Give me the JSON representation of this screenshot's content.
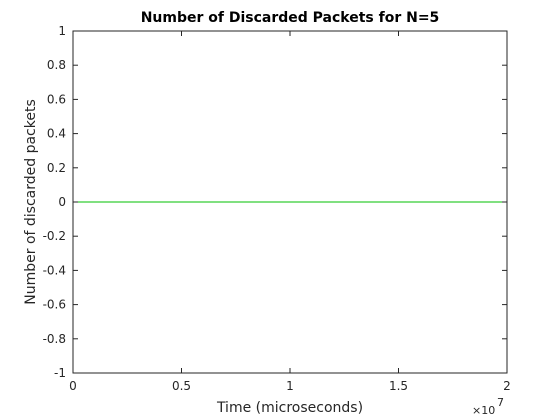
{
  "chart_data": {
    "type": "line",
    "title": "Number of Discarded Packets for N=5",
    "xlabel": "Time (microseconds)",
    "ylabel": "Number of discarded packets",
    "x_exponent_base": "×10",
    "x_exponent_power": "7",
    "xlim": [
      0,
      20000000
    ],
    "ylim": [
      -1,
      1
    ],
    "x_ticks": [
      0,
      5000000,
      10000000,
      15000000,
      20000000
    ],
    "x_tick_labels": [
      "0",
      "0.5",
      "1",
      "1.5",
      "2"
    ],
    "y_ticks": [
      -1,
      -0.8,
      -0.6,
      -0.4,
      -0.2,
      0,
      0.2,
      0.4,
      0.6,
      0.8,
      1
    ],
    "y_tick_labels": [
      "-1",
      "-0.8",
      "-0.6",
      "-0.4",
      "-0.2",
      "0",
      "0.2",
      "0.4",
      "0.6",
      "0.8",
      "1"
    ],
    "grid": false,
    "series": [
      {
        "color": "#00c000",
        "x": [
          0,
          20000000
        ],
        "y": [
          0,
          0
        ]
      }
    ]
  }
}
